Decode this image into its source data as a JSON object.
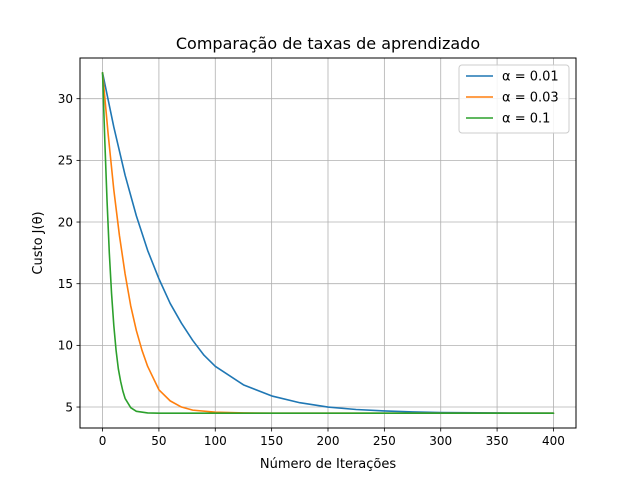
{
  "chart_data": {
    "type": "line",
    "title": "Comparação de taxas de aprendizado",
    "xlabel": "Número de Iterações",
    "ylabel": "Custo J(θ)",
    "xlim": [
      -20,
      420
    ],
    "ylim": [
      3.3,
      33.3
    ],
    "xticks": [
      0,
      50,
      100,
      150,
      200,
      250,
      300,
      350,
      400
    ],
    "yticks": [
      5,
      10,
      15,
      20,
      25,
      30
    ],
    "grid": true,
    "legend_position": "top-right",
    "series": [
      {
        "name": "α = 0.01",
        "color": "#1f77b4",
        "x": [
          0,
          10,
          20,
          30,
          40,
          50,
          60,
          70,
          80,
          90,
          100,
          125,
          150,
          175,
          200,
          225,
          250,
          275,
          300,
          350,
          400
        ],
        "values": [
          32.1,
          27.7,
          23.8,
          20.5,
          17.7,
          15.4,
          13.4,
          11.8,
          10.4,
          9.2,
          8.3,
          6.8,
          5.9,
          5.35,
          5.0,
          4.8,
          4.68,
          4.6,
          4.55,
          4.52,
          4.5
        ]
      },
      {
        "name": "α = 0.03",
        "color": "#ff7f0e",
        "x": [
          0,
          5,
          10,
          15,
          20,
          25,
          30,
          35,
          40,
          50,
          60,
          70,
          80,
          100,
          125,
          150,
          200,
          250,
          300,
          350,
          400
        ],
        "values": [
          32.1,
          27.1,
          22.6,
          18.9,
          15.8,
          13.2,
          11.2,
          9.6,
          8.3,
          6.4,
          5.5,
          5.0,
          4.75,
          4.58,
          4.52,
          4.5,
          4.5,
          4.5,
          4.5,
          4.5,
          4.5
        ]
      },
      {
        "name": "α = 0.1",
        "color": "#2ca02c",
        "x": [
          0,
          2,
          4,
          6,
          8,
          10,
          12,
          14,
          16,
          18,
          20,
          25,
          30,
          40,
          50,
          100,
          150,
          200,
          250,
          300,
          350,
          400
        ],
        "values": [
          32.1,
          26.6,
          21.7,
          17.5,
          14.2,
          11.6,
          9.6,
          8.1,
          7.1,
          6.3,
          5.7,
          4.95,
          4.65,
          4.52,
          4.5,
          4.5,
          4.5,
          4.5,
          4.5,
          4.5,
          4.5,
          4.5
        ]
      }
    ]
  }
}
